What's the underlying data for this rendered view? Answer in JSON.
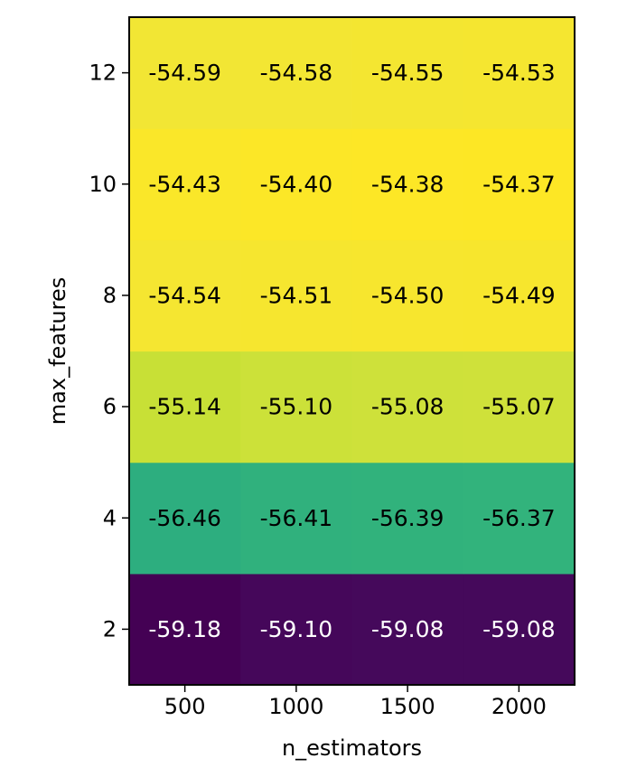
{
  "chart_data": {
    "type": "heatmap",
    "title": "",
    "xlabel": "n_estimators",
    "ylabel": "max_features",
    "x": [
      "500",
      "1000",
      "1500",
      "2000"
    ],
    "y": [
      "2",
      "4",
      "6",
      "8",
      "10",
      "12"
    ],
    "values": [
      [
        -59.18,
        -59.1,
        -59.08,
        -59.08
      ],
      [
        -56.46,
        -56.41,
        -56.39,
        -56.37
      ],
      [
        -55.14,
        -55.1,
        -55.08,
        -55.07
      ],
      [
        -54.54,
        -54.51,
        -54.5,
        -54.49
      ],
      [
        -54.43,
        -54.4,
        -54.38,
        -54.37
      ],
      [
        -54.59,
        -54.58,
        -54.55,
        -54.53
      ]
    ],
    "value_format": "%.2f",
    "colormap": "viridis",
    "grid": false,
    "colors": {
      "high": "#f1e64c",
      "low": "#3b0e52",
      "mid": "#4ea38a",
      "text_dark": "#000000",
      "text_light": "#ffffff"
    }
  }
}
